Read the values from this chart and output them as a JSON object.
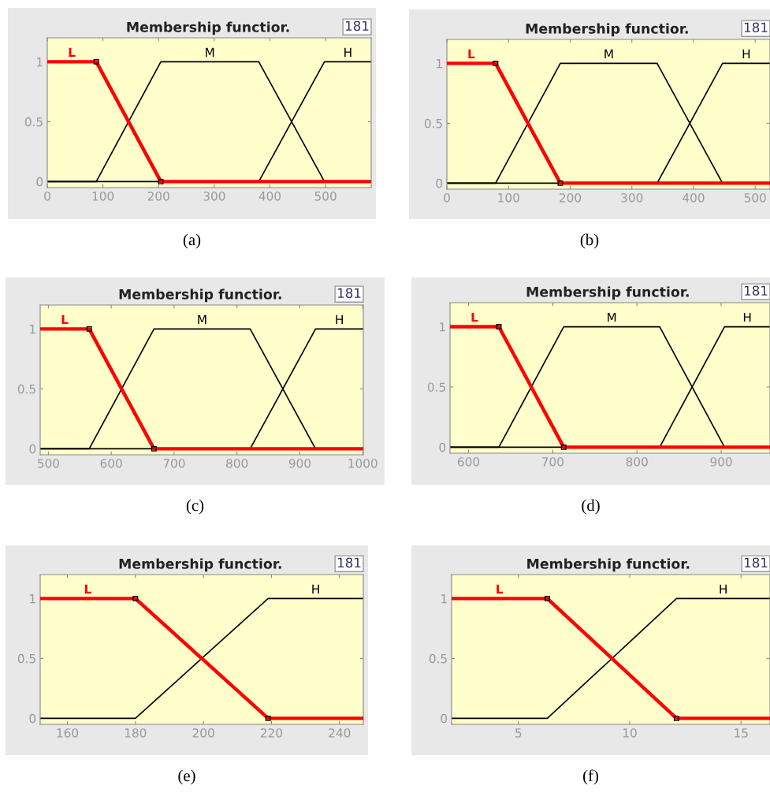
{
  "chart_data": [
    {
      "type": "line",
      "title": "Membership functior.",
      "annotations": [
        "181",
        "(a)"
      ],
      "xlim": [
        0,
        582
      ],
      "xticks": [
        0,
        100,
        200,
        300,
        400,
        500
      ],
      "ylim": [
        -0.05,
        1.2
      ],
      "yticks": [
        0,
        0.5,
        1
      ],
      "grid": false,
      "legend": false,
      "series": [
        {
          "name": "L",
          "color": "#ff0000",
          "marker": "square",
          "x": [
            0,
            88,
            204,
            582
          ],
          "values": [
            1,
            1,
            0,
            0
          ]
        },
        {
          "name": "M",
          "color": "#000000",
          "x": [
            0,
            88,
            204,
            380,
            498,
            582
          ],
          "values": [
            0,
            0,
            1,
            1,
            0,
            0
          ]
        },
        {
          "name": "H",
          "color": "#000000",
          "x": [
            0,
            380,
            498,
            582
          ],
          "values": [
            0,
            0,
            1,
            1
          ]
        }
      ]
    },
    {
      "type": "line",
      "title": "Membership functior.",
      "annotations": [
        "181",
        "(b)"
      ],
      "xlim": [
        0,
        524
      ],
      "xticks": [
        0,
        100,
        200,
        300,
        400,
        500
      ],
      "ylim": [
        -0.05,
        1.2
      ],
      "yticks": [
        0,
        0.5,
        1
      ],
      "grid": false,
      "legend": false,
      "series": [
        {
          "name": "L",
          "color": "#ff0000",
          "marker": "square",
          "x": [
            0,
            79,
            184,
            524
          ],
          "values": [
            1,
            1,
            0,
            0
          ]
        },
        {
          "name": "M",
          "color": "#000000",
          "x": [
            0,
            79,
            184,
            341,
            447,
            524
          ],
          "values": [
            0,
            0,
            1,
            1,
            0,
            0
          ]
        },
        {
          "name": "H",
          "color": "#000000",
          "x": [
            0,
            341,
            447,
            524
          ],
          "values": [
            0,
            0,
            1,
            1
          ]
        }
      ]
    },
    {
      "type": "line",
      "title": "Membership functior.",
      "annotations": [
        "181",
        "(c)"
      ],
      "xlim": [
        487,
        1001
      ],
      "xticks": [
        500,
        600,
        700,
        800,
        900,
        1000
      ],
      "ylim": [
        -0.05,
        1.2
      ],
      "yticks": [
        0,
        0.5,
        1
      ],
      "grid": false,
      "legend": false,
      "series": [
        {
          "name": "L",
          "color": "#ff0000",
          "marker": "square",
          "x": [
            487,
            565,
            668,
            1001
          ],
          "values": [
            1,
            1,
            0,
            0
          ]
        },
        {
          "name": "M",
          "color": "#000000",
          "x": [
            487,
            565,
            668,
            821,
            925,
            1001
          ],
          "values": [
            0,
            0,
            1,
            1,
            0,
            0
          ]
        },
        {
          "name": "H",
          "color": "#000000",
          "x": [
            487,
            821,
            925,
            1001
          ],
          "values": [
            0,
            0,
            1,
            1
          ]
        }
      ]
    },
    {
      "type": "line",
      "title": "Membership functior.",
      "annotations": [
        "181",
        "(d)"
      ],
      "xlim": [
        578,
        958
      ],
      "xticks": [
        600,
        700,
        800,
        900
      ],
      "ylim": [
        -0.05,
        1.2
      ],
      "yticks": [
        0,
        0.5,
        1
      ],
      "grid": false,
      "legend": false,
      "series": [
        {
          "name": "L",
          "color": "#ff0000",
          "marker": "square",
          "x": [
            578,
            636,
            713,
            958
          ],
          "values": [
            1,
            1,
            0,
            0
          ]
        },
        {
          "name": "M",
          "color": "#000000",
          "x": [
            578,
            636,
            713,
            827,
            904,
            958
          ],
          "values": [
            0,
            0,
            1,
            1,
            0,
            0
          ]
        },
        {
          "name": "H",
          "color": "#000000",
          "x": [
            578,
            827,
            904,
            958
          ],
          "values": [
            0,
            0,
            1,
            1
          ]
        }
      ]
    },
    {
      "type": "line",
      "title": "Membership functior.",
      "annotations": [
        "181",
        "(e)"
      ],
      "xlim": [
        152,
        247
      ],
      "xticks": [
        160,
        180,
        200,
        220,
        240
      ],
      "ylim": [
        -0.05,
        1.2
      ],
      "yticks": [
        0,
        0.5,
        1
      ],
      "grid": false,
      "legend": false,
      "series": [
        {
          "name": "L",
          "color": "#ff0000",
          "marker": "square",
          "x": [
            152,
            180,
            219,
            247
          ],
          "values": [
            1,
            1,
            0,
            0
          ]
        },
        {
          "name": "H",
          "color": "#000000",
          "x": [
            152,
            180,
            219,
            247
          ],
          "values": [
            0,
            0,
            1,
            1
          ]
        }
      ]
    },
    {
      "type": "line",
      "title": "Membership functior.",
      "annotations": [
        "181",
        "(f)"
      ],
      "xlim": [
        2,
        16.3
      ],
      "xticks": [
        5,
        10,
        15
      ],
      "ylim": [
        -0.05,
        1.2
      ],
      "yticks": [
        0,
        0.5,
        1
      ],
      "grid": false,
      "legend": false,
      "series": [
        {
          "name": "L",
          "color": "#ff0000",
          "marker": "square",
          "x": [
            2,
            6.3,
            12.1,
            16.3
          ],
          "values": [
            1,
            1,
            0,
            0
          ]
        },
        {
          "name": "H",
          "color": "#000000",
          "x": [
            2,
            6.3,
            12.1,
            16.3
          ],
          "values": [
            0,
            0,
            1,
            1
          ]
        }
      ]
    }
  ]
}
